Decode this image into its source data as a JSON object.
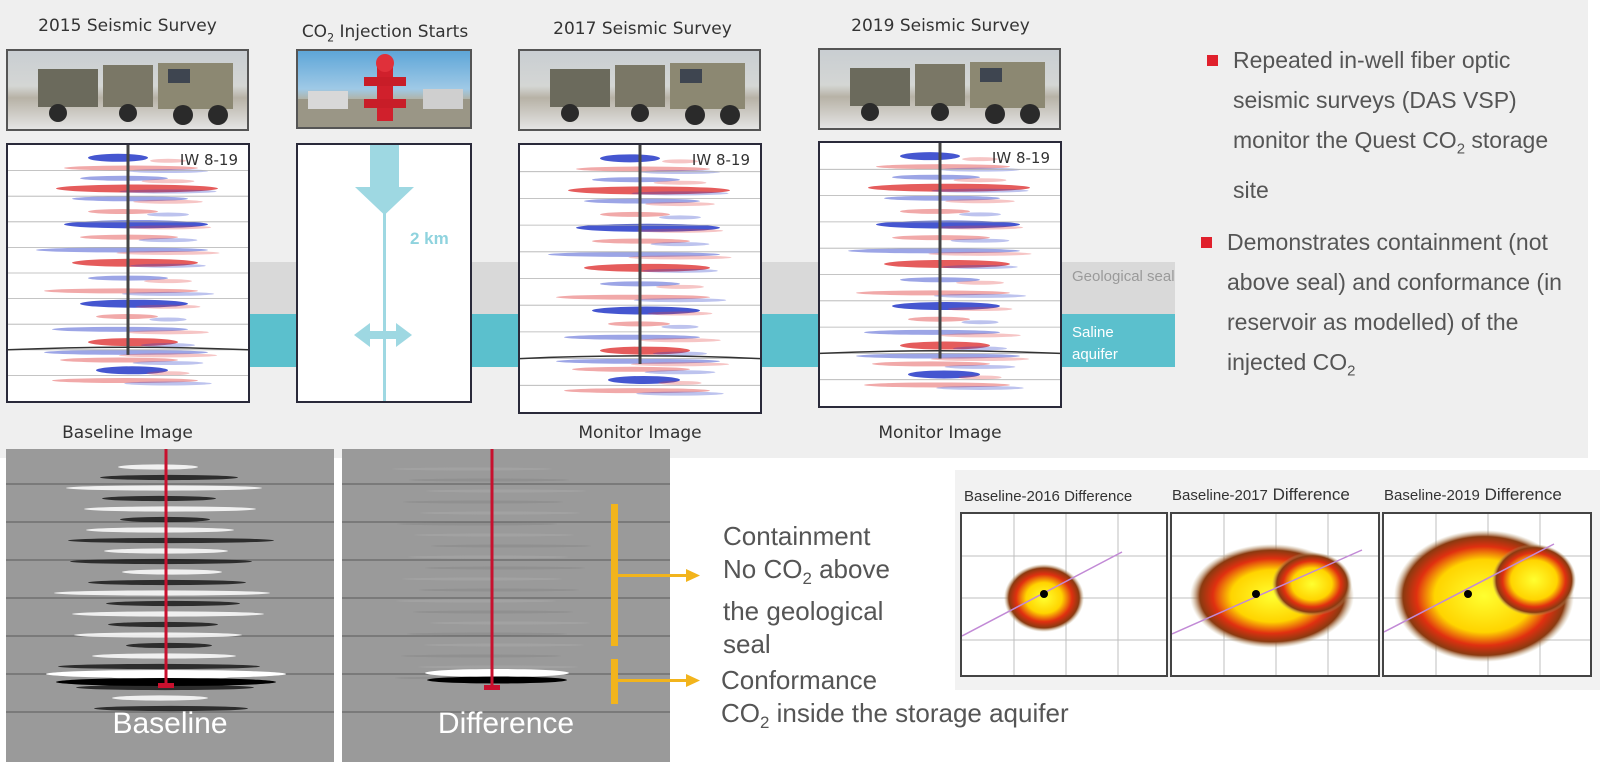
{
  "top_labels": {
    "survey_2015": "2015 Seismic Survey",
    "injection_prefix": "CO",
    "injection_sub": "2",
    "injection_suffix": " Injection Starts",
    "survey_2017": "2017 Seismic Survey",
    "survey_2019": "2019 Seismic Survey"
  },
  "well_label": "IW 8-19",
  "depth_label": "2 km",
  "bands": {
    "seal": "Geological seal",
    "aquifer_line1": "Saline",
    "aquifer_line2": "aquifer"
  },
  "image_captions": {
    "baseline": "Baseline Image",
    "monitor_2017": "Monitor Image",
    "monitor_2019": "Monitor Image"
  },
  "bullets": [
    {
      "pre": "Repeated in-well fiber optic seismic surveys (DAS VSP) monitor the Quest CO",
      "sub": "2",
      "post": " storage site"
    },
    {
      "pre": "Demonstrates containment (not above seal) and conformance (in reservoir as modelled) of the injected CO",
      "sub": "2",
      "post": ""
    }
  ],
  "bottom_images": {
    "baseline": "Baseline",
    "difference": "Difference"
  },
  "callouts": {
    "containment_title": "Containment",
    "containment_pre": "No CO",
    "containment_sub": "2",
    "containment_post": " above",
    "containment_line3": "the geological",
    "containment_line4": "seal",
    "conformance_title": "Conformance",
    "conformance_pre": "CO",
    "conformance_sub": "2",
    "conformance_post": " inside the storage aquifer"
  },
  "difference_maps": [
    {
      "prefix": "Baseline-2016",
      "suffix": " Difference"
    },
    {
      "prefix": "Baseline-2017",
      "suffix": " Difference"
    },
    {
      "prefix": "Baseline-2019",
      "suffix": " Difference"
    }
  ],
  "colors": {
    "aquifer": "#5bc0cd",
    "seal": "#d9d9d9",
    "injection_arrow": "#9ed8e2",
    "well_red": "#c8102e",
    "callout_yellow": "#f2b41c",
    "bullet_red": "#e0202c"
  }
}
